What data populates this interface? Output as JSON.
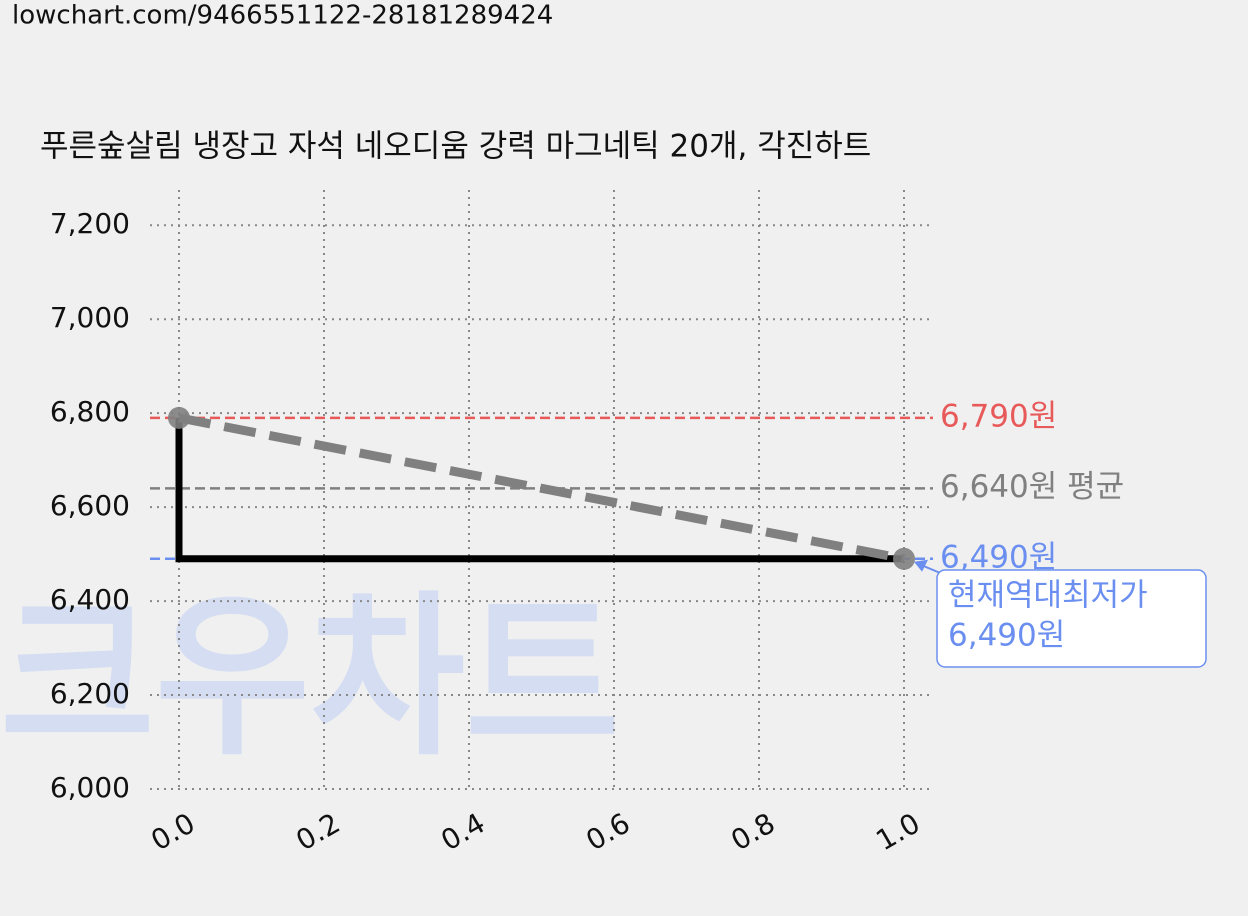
{
  "url": "lowchart.com/9466551122-28181289424",
  "chart_data": {
    "type": "line",
    "title": "푸른숲살림 냉장고 자석 네오디움 강력 마그네틱 20개, 각진하트",
    "watermark": "크우차트",
    "xlim": [
      -0.04,
      1.04
    ],
    "ylim": [
      6000,
      7275
    ],
    "xticks": [
      {
        "value": 0,
        "label": "0.0"
      },
      0.2,
      0.4,
      0.6,
      0.8,
      {
        "value": 1,
        "label": "1.0"
      }
    ],
    "yticks": [
      {
        "value": 6000,
        "label": "6,000"
      },
      {
        "value": 6200,
        "label": "6,200"
      },
      {
        "value": 6400,
        "label": "6,400"
      },
      {
        "value": 6600,
        "label": "6,600"
      },
      {
        "value": 6800,
        "label": "6,800"
      },
      {
        "value": 7000,
        "label": "7,000"
      },
      {
        "value": 7200,
        "label": "7,200"
      }
    ],
    "grid": true,
    "series": [
      {
        "x": [
          0,
          0,
          1
        ],
        "values": [
          6790,
          6490,
          6490
        ],
        "color": "#000000",
        "dashed": false,
        "markers": false
      },
      {
        "x": [
          0,
          1
        ],
        "values": [
          6790,
          6490
        ],
        "color": "#808080",
        "dashed": true,
        "markers": true
      }
    ],
    "reference_lines": [
      {
        "value": 6790,
        "label": "6,790원",
        "color": "#e85a5a"
      },
      {
        "value": 6640,
        "label": "6,640원 평균",
        "color": "#808080"
      },
      {
        "value": 6490,
        "label": "6,490원",
        "color": "#6b8ff0"
      }
    ],
    "annotation": {
      "x": 1,
      "y": 6490,
      "lines": [
        "현재역대최저가",
        "6,490원"
      ],
      "color": "#6b8ff0"
    }
  }
}
